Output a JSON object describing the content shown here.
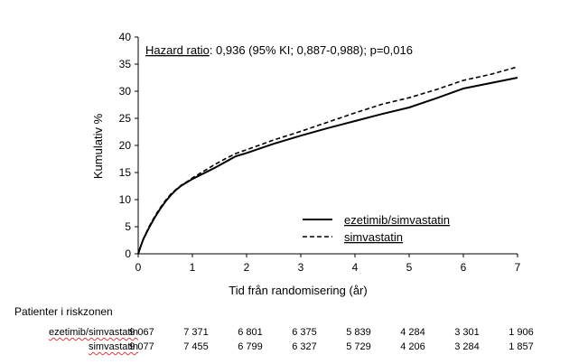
{
  "chart_data": {
    "type": "line",
    "title": "",
    "xlabel": "Tid från randomisering (år)",
    "ylabel": "Kumulativ %",
    "xlim": [
      0,
      7
    ],
    "ylim": [
      0,
      40
    ],
    "xticks": [
      "0",
      "1",
      "2",
      "3",
      "4",
      "5",
      "6",
      "7"
    ],
    "yticks": [
      "0",
      "5",
      "10",
      "15",
      "20",
      "25",
      "30",
      "35",
      "40"
    ],
    "grid": false,
    "annotation": {
      "prefix": "Hazard ratio",
      "text": ": 0,936 (95% KI; 0,887-0,988); p=0,016"
    },
    "legend_position": "bottom-right",
    "series": [
      {
        "name": "ezetimib/simvastatin",
        "style": "solid",
        "x": [
          0,
          0.05,
          0.1,
          0.2,
          0.3,
          0.4,
          0.5,
          0.6,
          0.7,
          0.8,
          0.9,
          1.0,
          1.2,
          1.4,
          1.6,
          1.8,
          2.0,
          2.5,
          3.0,
          3.5,
          4.0,
          4.5,
          5.0,
          5.5,
          6.0,
          6.5,
          7.0
        ],
        "y": [
          0,
          1.5,
          2.8,
          4.8,
          6.6,
          8.2,
          9.6,
          10.8,
          11.8,
          12.6,
          13.2,
          13.8,
          14.8,
          15.8,
          16.9,
          18.0,
          18.6,
          20.3,
          21.8,
          23.2,
          24.5,
          25.8,
          27.0,
          28.7,
          30.5,
          31.5,
          32.5
        ]
      },
      {
        "name": "simvastatin",
        "style": "dashed",
        "x": [
          0,
          0.05,
          0.1,
          0.2,
          0.3,
          0.4,
          0.5,
          0.6,
          0.7,
          0.8,
          0.9,
          1.0,
          1.2,
          1.4,
          1.6,
          1.8,
          2.0,
          2.5,
          3.0,
          3.5,
          4.0,
          4.5,
          5.0,
          5.5,
          6.0,
          6.5,
          7.0
        ],
        "y": [
          0,
          1.5,
          2.9,
          5.0,
          6.8,
          8.4,
          9.8,
          11.0,
          11.9,
          12.7,
          13.3,
          14.0,
          15.2,
          16.4,
          17.5,
          18.5,
          19.2,
          21.0,
          22.6,
          24.3,
          26.0,
          27.6,
          28.8,
          30.3,
          32.0,
          33.1,
          34.5
        ]
      }
    ]
  },
  "risk_table": {
    "title": "Patienter i riskzonen",
    "rows": [
      {
        "label": "ezetimib/simvastatin",
        "values": [
          "9 067",
          "7 371",
          "6 801",
          "6 375",
          "5 839",
          "4 284",
          "3 301",
          "1 906"
        ]
      },
      {
        "label": "simvastatin",
        "values": [
          "9 077",
          "7 455",
          "6 799",
          "6 327",
          "5 729",
          "4 206",
          "3 284",
          "1 857"
        ]
      }
    ]
  }
}
